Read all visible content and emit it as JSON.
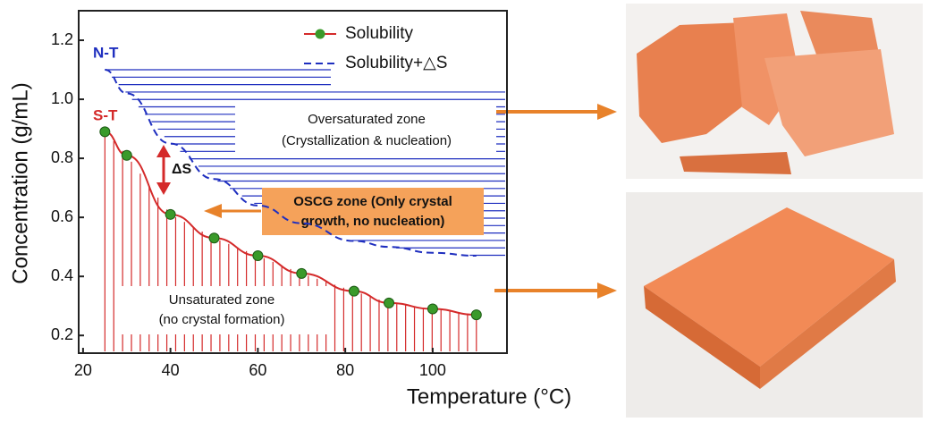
{
  "chart_data": {
    "type": "line",
    "xlabel": "Temperature (°C)",
    "ylabel": "Concentration (g/mL)",
    "xlim": [
      19,
      117
    ],
    "ylim": [
      0.14,
      1.3
    ],
    "xticks": [
      20,
      40,
      60,
      80,
      100
    ],
    "yticks": [
      0.2,
      0.4,
      0.6,
      0.8,
      {
        "value": 1,
        "label": "1.0"
      },
      1.2
    ],
    "series": [
      {
        "name": "Solubility",
        "color": "#d42a2a",
        "marker_color": "#3a9a2a",
        "x": [
          25,
          30,
          40,
          50,
          60,
          70,
          82,
          90,
          100,
          110
        ],
        "values": [
          0.89,
          0.81,
          0.61,
          0.53,
          0.47,
          0.41,
          0.35,
          0.31,
          0.29,
          0.27
        ]
      },
      {
        "name": "Solubility+△S",
        "color": "#1f2fbf",
        "dashed": true,
        "x": [
          25,
          30,
          40,
          50,
          60,
          70,
          82,
          90,
          100,
          110
        ],
        "values": [
          1.1,
          1.02,
          0.85,
          0.73,
          0.64,
          0.58,
          0.52,
          0.5,
          0.48,
          0.47
        ]
      }
    ],
    "annotations": {
      "nt": "N-T",
      "st": "S-T",
      "delta": "ΔS",
      "over1": "Oversaturated zone",
      "over2": "(Crystallization & nucleation)",
      "oscg1": "OSCG zone (Only crystal",
      "oscg2": "growth, no nucleation)",
      "unsat1": "Unsaturated zone",
      "unsat2": "(no crystal formation)"
    }
  }
}
